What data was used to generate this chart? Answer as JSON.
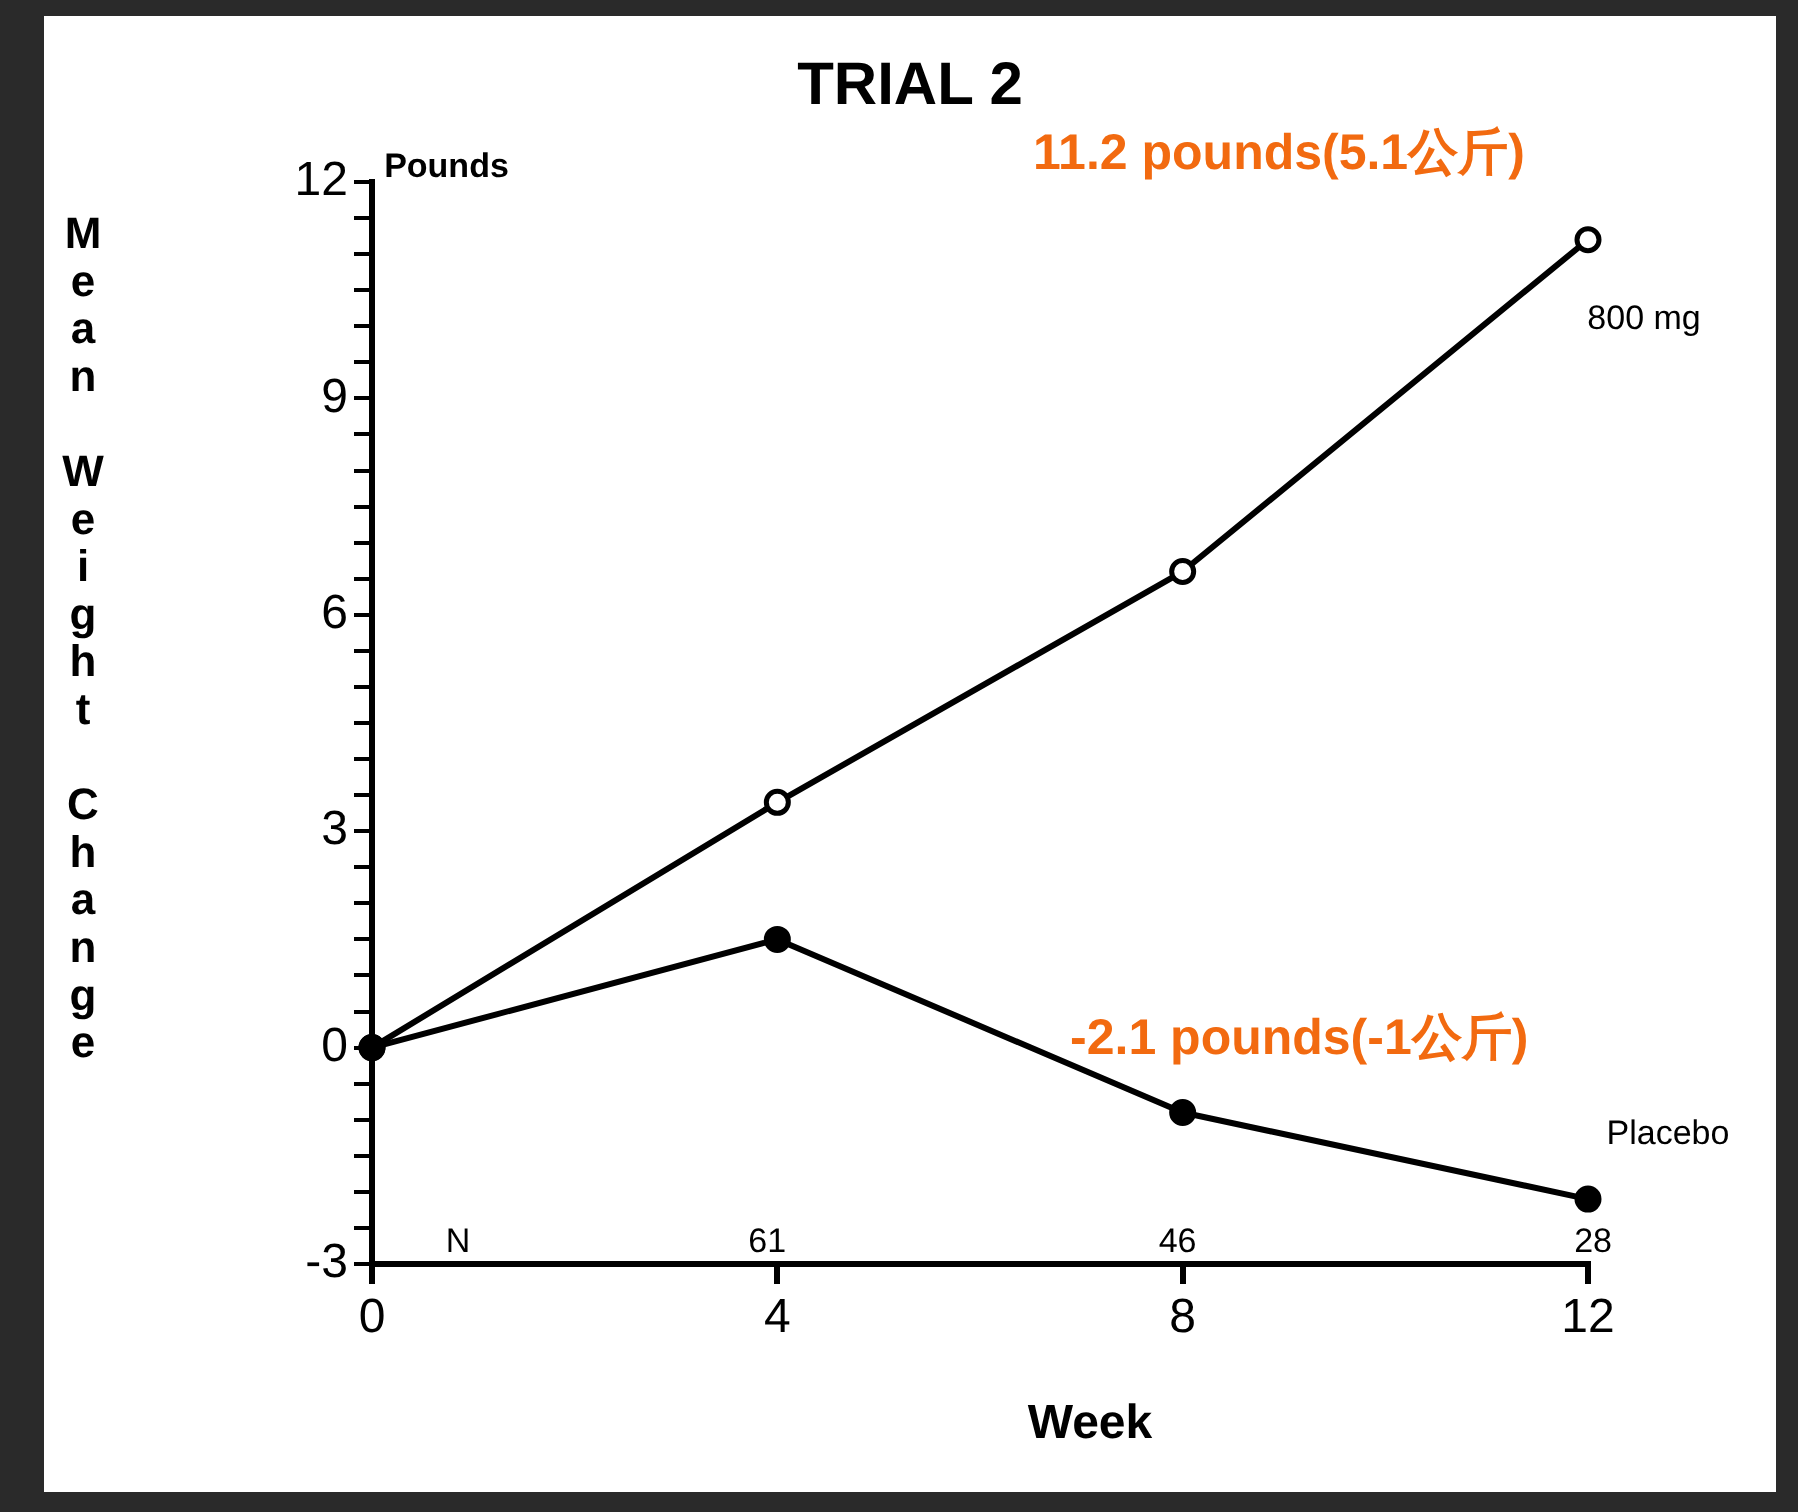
{
  "chart_data": {
    "type": "line",
    "title": "TRIAL 2",
    "xlabel": "Week",
    "ylabel": "Mean Weight Change",
    "x": [
      0,
      4,
      8,
      12
    ],
    "series": [
      {
        "name": "800 mg",
        "color": "#000000",
        "values": [
          0,
          3.4,
          6.6,
          11.2
        ]
      },
      {
        "name": "Placebo",
        "color": "#000000",
        "values": [
          0,
          1.5,
          -0.9,
          -2.1
        ]
      }
    ],
    "xlim": [
      0,
      12
    ],
    "xticks": [
      0,
      4,
      8,
      12
    ],
    "ylim": [
      -3,
      12
    ],
    "yticks": [
      -3,
      {
        "value": -2.5,
        "label": null
      },
      {
        "value": -2,
        "label": null
      },
      {
        "value": -1.5,
        "label": null
      },
      {
        "value": -1,
        "label": null
      },
      {
        "value": -0.5,
        "label": null
      },
      0,
      {
        "value": 0.5,
        "label": null
      },
      {
        "value": 1,
        "label": null
      },
      {
        "value": 1.5,
        "label": null
      },
      {
        "value": 2,
        "label": null
      },
      {
        "value": 2.5,
        "label": null
      },
      3,
      {
        "value": 3.5,
        "label": null
      },
      {
        "value": 4,
        "label": null
      },
      {
        "value": 4.5,
        "label": null
      },
      {
        "value": 5,
        "label": null
      },
      {
        "value": 5.5,
        "label": null
      },
      6,
      {
        "value": 6.5,
        "label": null
      },
      {
        "value": 7,
        "label": null
      },
      {
        "value": 7.5,
        "label": null
      },
      {
        "value": 8,
        "label": null
      },
      {
        "value": 8.5,
        "label": null
      },
      9,
      {
        "value": 9.5,
        "label": null
      },
      {
        "value": 10,
        "label": null
      },
      {
        "value": 10.5,
        "label": null
      },
      {
        "value": 11,
        "label": null
      },
      {
        "value": 11.5,
        "label": null
      },
      12
    ],
    "annotations": [
      "Pounds",
      "11.2 pounds(5.1公斤)",
      "-2.1 pounds(-1公斤)",
      "N",
      "61",
      "46",
      "28"
    ],
    "grid": false,
    "legend": false,
    "marker": "circle",
    "line_style": "solid"
  }
}
